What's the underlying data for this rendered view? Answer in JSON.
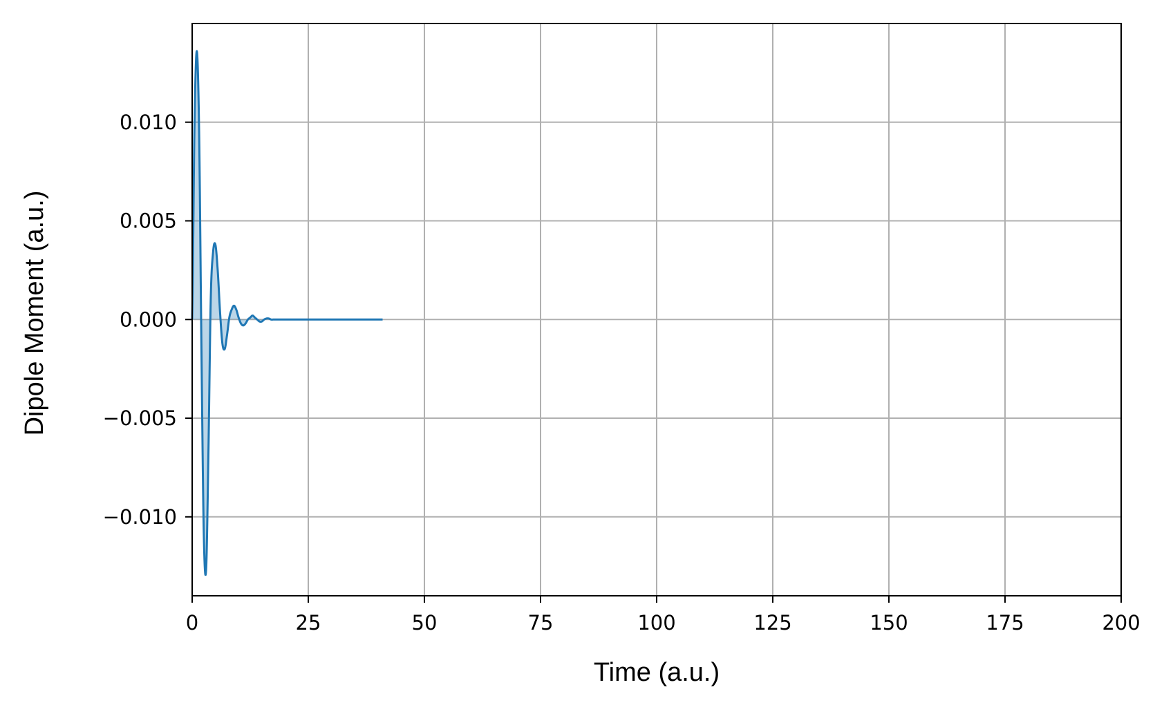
{
  "chart_data": {
    "type": "line",
    "title": "",
    "xlabel": "Time (a.u.)",
    "ylabel": "Dipole Moment (a.u.)",
    "xlim": [
      0,
      200
    ],
    "ylim": [
      -0.014,
      0.015
    ],
    "xticks": [
      0,
      25,
      50,
      75,
      100,
      125,
      150,
      175,
      200
    ],
    "xtick_labels": [
      "0",
      "25",
      "50",
      "75",
      "100",
      "125",
      "150",
      "175",
      "200"
    ],
    "yticks": [
      -0.01,
      -0.005,
      0.0,
      0.005,
      0.01
    ],
    "ytick_labels": [
      "−0.010",
      "−0.005",
      "0.000",
      "0.005",
      "0.010"
    ],
    "grid": true,
    "fill_to_zero": true,
    "series": [
      {
        "color": "#1f77b4",
        "x": [
          0,
          0.5,
          1.0,
          1.5,
          2.0,
          2.5,
          3.0,
          3.5,
          4.0,
          4.5,
          5.0,
          5.5,
          6.0,
          6.5,
          7.0,
          7.5,
          8.0,
          8.5,
          9.0,
          9.5,
          10.0,
          10.5,
          11.0,
          11.5,
          12.0,
          12.5,
          13.0,
          13.5,
          14.0,
          14.5,
          15.0,
          15.5,
          16.0,
          16.5,
          17.0,
          17.5,
          18.0,
          19.0,
          20.0,
          21.0,
          22.0,
          23.0,
          24.0,
          25.0,
          30.0,
          35.0,
          41.0
        ],
        "y": [
          0.0,
          0.0098,
          0.0136,
          0.0095,
          -0.0015,
          -0.0108,
          -0.0127,
          -0.0068,
          0.001,
          0.0034,
          0.0038,
          0.0025,
          0.0004,
          -0.0012,
          -0.0015,
          -0.0008,
          0.0001,
          0.0005,
          0.0007,
          0.0005,
          0.0001,
          -0.0002,
          -0.0003,
          -0.0002,
          0.0,
          0.0001,
          0.0002,
          0.0001,
          0.0,
          -0.0001,
          -0.0001,
          0.0,
          5e-05,
          5e-05,
          0.0,
          0.0,
          0.0,
          0.0,
          0.0,
          0.0,
          0.0,
          0.0,
          0.0,
          0.0,
          0.0,
          0.0,
          0.0
        ]
      }
    ]
  }
}
